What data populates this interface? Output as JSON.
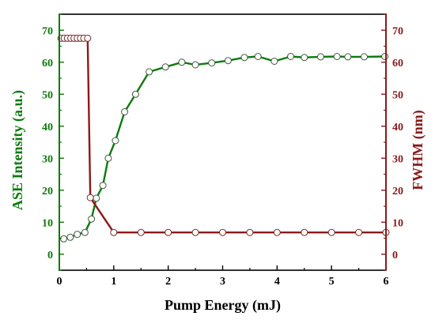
{
  "chart_data": {
    "type": "line",
    "title": "",
    "xlabel": "Pump Energy (mJ)",
    "ylabel_left": "ASE Intensity (a.u.)",
    "ylabel_right": "FWHM (nm)",
    "xlim": [
      0,
      6
    ],
    "ylim_left": [
      -5,
      75
    ],
    "ylim_right": [
      -5,
      75
    ],
    "x_ticks": [
      "0",
      "1",
      "2",
      "3",
      "4",
      "5",
      "6"
    ],
    "y_ticks_left": [
      "0",
      "10",
      "20",
      "30",
      "40",
      "50",
      "60",
      "70"
    ],
    "y_ticks_right": [
      "0",
      "10",
      "20",
      "30",
      "40",
      "50",
      "60",
      "70"
    ],
    "grid": false,
    "legend": "none",
    "series": [
      {
        "axis": "left",
        "color": "#0c7a0c",
        "marker": "open-circle",
        "x": [
          0.08,
          0.2,
          0.33,
          0.47,
          0.59,
          0.68,
          0.8,
          0.9,
          1.03,
          1.2,
          1.4,
          1.65,
          1.95,
          2.25,
          2.5,
          2.8,
          3.1,
          3.4,
          3.65,
          3.95,
          4.25,
          4.5,
          4.8,
          5.1,
          5.3,
          5.6,
          5.98
        ],
        "y": [
          4.8,
          5.3,
          6.2,
          6.8,
          11,
          17.5,
          21.5,
          30,
          35.5,
          44.5,
          50,
          57,
          58.5,
          60,
          59.2,
          59.8,
          60.5,
          61.5,
          61.8,
          60.3,
          61.8,
          61.5,
          61.7,
          61.8,
          61.7,
          61.7,
          61.8
        ]
      },
      {
        "axis": "right",
        "color": "#8b1a1a",
        "marker": "open-circle",
        "x": [
          0.03,
          0.09,
          0.15,
          0.21,
          0.27,
          0.33,
          0.39,
          0.45,
          0.52,
          0.57,
          1.0,
          1.5,
          2.0,
          2.5,
          3.0,
          3.5,
          4.0,
          4.5,
          5.0,
          5.5,
          6.0
        ],
        "y": [
          67.5,
          67.5,
          67.5,
          67.5,
          67.5,
          67.5,
          67.5,
          67.5,
          67.5,
          17.7,
          6.8,
          6.8,
          6.8,
          6.8,
          6.8,
          6.8,
          6.8,
          6.8,
          6.8,
          6.8,
          6.8
        ]
      }
    ]
  },
  "colors": {
    "left_axis": "#0c7a0c",
    "right_axis": "#8b1a1a",
    "frame": "#000000"
  }
}
